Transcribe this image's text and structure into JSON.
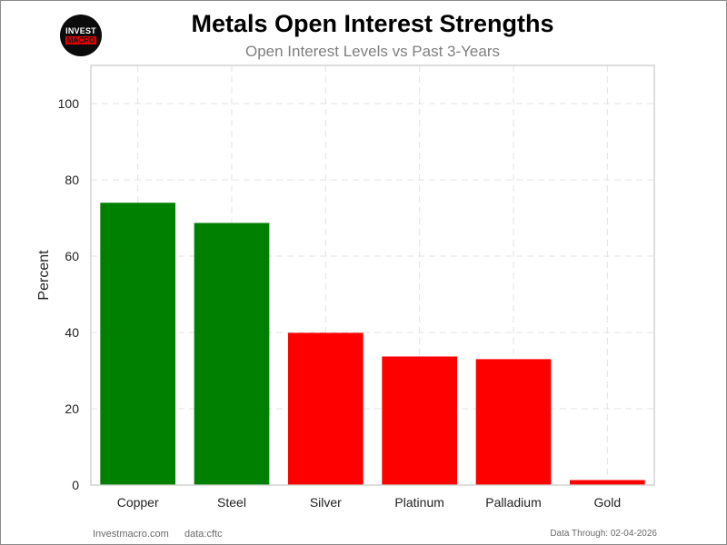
{
  "logo": {
    "line1": "INVEST",
    "line2": "MACRO"
  },
  "chart_data": {
    "type": "bar",
    "title": "Metals Open Interest Strengths",
    "subtitle": "Open Interest Levels vs Past 3-Years",
    "xlabel": "",
    "ylabel": "Percent",
    "categories": [
      "Copper",
      "Steel",
      "Silver",
      "Platinum",
      "Palladium",
      "Gold"
    ],
    "values": [
      74.0,
      68.7,
      39.9,
      33.7,
      33.0,
      1.3
    ],
    "bar_colors": [
      "#008000",
      "#008000",
      "#ff0000",
      "#ff0000",
      "#ff0000",
      "#ff0000"
    ],
    "ylim": [
      0,
      110
    ],
    "yticks": [
      0,
      20,
      40,
      60,
      80,
      100
    ],
    "grid": true,
    "legend": "none"
  },
  "footer": {
    "site": "Investmacro.com",
    "source": "data:cftc",
    "data_through": "Data Through: 02-04-2026"
  }
}
